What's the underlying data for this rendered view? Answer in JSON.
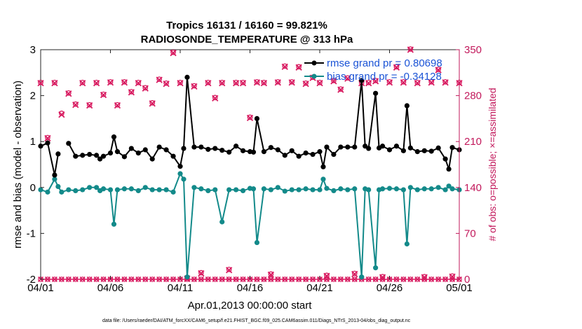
{
  "chart_data": {
    "type": "line",
    "title_line1": "Tropics 16131 / 16160 = 99.821%",
    "title_line2": "RADIOSONDE_TEMPERATURE @ 313 hPa",
    "xlabel": "Apr.01,2013 00:00:00 start",
    "ylabel_left": "rmse and bias (model - observation)",
    "ylabel_right": "# of obs: o=possible; ×=assimilated",
    "footnote": "data file: /Users/raeder/DAI/ATM_forcXX/CAM6_setup/f.e21.FHIST_BGC.f09_025.CAM6assim.011/Diags_NTrS_2013-04/obs_diag_output.nc",
    "xlim": [
      0,
      30
    ],
    "ylim_left": [
      -2,
      3
    ],
    "ylim_right": [
      0,
      350
    ],
    "x_ticks": [
      {
        "x": 0,
        "label": "04/01"
      },
      {
        "x": 5,
        "label": "04/06"
      },
      {
        "x": 10,
        "label": "04/11"
      },
      {
        "x": 15,
        "label": "04/16"
      },
      {
        "x": 20,
        "label": "04/21"
      },
      {
        "x": 25,
        "label": "04/26"
      },
      {
        "x": 30,
        "label": "05/01"
      }
    ],
    "y_ticks_left": [
      "-2",
      "-1",
      "0",
      "1",
      "2",
      "3"
    ],
    "y_ticks_right": [
      "0",
      "70",
      "140",
      "210",
      "280",
      "350"
    ],
    "legend": [
      {
        "name": "rmse grand pr = 0.80698",
        "color": "#000000"
      },
      {
        "name": "bias grand pr = -0.34128",
        "color": "#138a8a"
      }
    ],
    "colors": {
      "rmse": "#000000",
      "bias": "#138a8a",
      "obs": "#d81b60",
      "legend_text": "#1a53d6"
    },
    "x": [
      0.0,
      0.5,
      1.0,
      1.25,
      1.5,
      2.0,
      2.5,
      3.0,
      3.5,
      4.0,
      4.25,
      4.5,
      5.0,
      5.25,
      5.5,
      6.0,
      6.5,
      7.0,
      7.5,
      8.0,
      8.5,
      9.0,
      9.5,
      10.0,
      10.25,
      10.5,
      11.0,
      11.5,
      12.0,
      12.5,
      13.0,
      13.5,
      14.0,
      14.5,
      15.0,
      15.25,
      15.5,
      16.0,
      16.5,
      17.0,
      17.5,
      18.0,
      18.5,
      19.0,
      19.5,
      20.0,
      20.25,
      20.5,
      21.0,
      21.5,
      22.0,
      22.5,
      23.0,
      23.25,
      23.5,
      24.0,
      24.25,
      24.5,
      25.0,
      25.5,
      26.0,
      26.25,
      26.5,
      27.0,
      27.5,
      28.0,
      28.5,
      29.0,
      29.25,
      29.5,
      30.0
    ],
    "series": [
      {
        "name": "rmse",
        "values": [
          0.9,
          0.97,
          0.27,
          0.73,
          null,
          0.96,
          0.68,
          0.7,
          0.72,
          0.7,
          0.62,
          0.68,
          0.75,
          1.1,
          0.78,
          0.67,
          0.85,
          0.75,
          0.82,
          0.62,
          0.88,
          0.82,
          0.68,
          0.46,
          0.85,
          2.4,
          0.88,
          0.88,
          0.83,
          0.85,
          0.81,
          0.77,
          0.9,
          0.8,
          0.78,
          0.77,
          1.5,
          0.78,
          0.87,
          0.82,
          0.7,
          0.8,
          0.68,
          0.75,
          0.72,
          0.78,
          0.45,
          0.88,
          0.72,
          0.88,
          0.88,
          0.88,
          2.33,
          0.9,
          0.85,
          2.05,
          0.86,
          0.9,
          0.82,
          0.9,
          0.8,
          1.78,
          0.86,
          0.78,
          0.8,
          0.79,
          0.86,
          0.62,
          0.4,
          0.87,
          0.82
        ]
      },
      {
        "name": "bias",
        "values": [
          -0.05,
          -0.1,
          0.18,
          0.02,
          -0.1,
          -0.05,
          -0.07,
          -0.05,
          0.0,
          0.0,
          -0.07,
          -0.03,
          -0.05,
          -0.8,
          -0.05,
          -0.03,
          -0.03,
          -0.07,
          0.0,
          -0.05,
          -0.05,
          -0.05,
          -0.1,
          0.3,
          0.18,
          -1.95,
          0.0,
          -0.03,
          -0.07,
          -0.05,
          -0.75,
          -0.05,
          -0.05,
          -0.07,
          -0.02,
          -0.03,
          -1.2,
          -0.03,
          -0.05,
          0.0,
          -0.08,
          -0.05,
          -0.05,
          -0.03,
          -0.05,
          -0.05,
          0.18,
          -0.02,
          -0.07,
          -0.03,
          -0.05,
          -0.03,
          -1.95,
          -0.03,
          -0.05,
          -1.75,
          -0.05,
          -0.03,
          -0.02,
          -0.03,
          -0.05,
          -1.23,
          0.0,
          -0.05,
          -0.03,
          -0.03,
          0.0,
          -0.05,
          0.03,
          -0.03,
          -0.05
        ]
      }
    ],
    "obs_possible_x": [
      0.0,
      0.5,
      1.0,
      1.5,
      2.0,
      2.5,
      3.0,
      3.5,
      4.0,
      4.5,
      5.0,
      5.5,
      6.0,
      6.5,
      7.0,
      7.5,
      8.0,
      8.5,
      9.0,
      9.5,
      10.0,
      10.5,
      11.0,
      11.5,
      12.0,
      12.5,
      13.0,
      13.5,
      14.0,
      14.5,
      15.0,
      15.5,
      16.0,
      16.5,
      17.0,
      17.5,
      18.0,
      18.5,
      19.0,
      19.5,
      20.0,
      20.5,
      21.0,
      21.5,
      22.0,
      22.5,
      23.0,
      23.5,
      24.0,
      24.5,
      25.0,
      25.5,
      26.0,
      26.5,
      27.0,
      27.5,
      28.0,
      28.5,
      29.0,
      29.5,
      30.0
    ],
    "obs_possible_y": [
      300,
      216,
      300,
      253,
      284,
      267,
      300,
      266,
      300,
      282,
      301,
      266,
      301,
      286,
      300,
      292,
      269,
      305,
      299,
      346,
      300,
      2,
      295,
      10,
      300,
      277,
      300,
      15,
      300,
      300,
      247,
      301,
      300,
      8,
      301,
      325,
      301,
      324,
      299,
      308,
      300,
      6,
      303,
      290,
      307,
      9,
      300,
      300,
      303,
      4,
      301,
      324,
      301,
      351,
      300,
      4,
      301,
      320,
      301,
      5,
      300
    ],
    "obs_assim_x": [
      0.0,
      0.5,
      1.0,
      1.5,
      2.0,
      2.5,
      3.0,
      3.5,
      4.0,
      4.5,
      5.0,
      5.5,
      6.0,
      6.5,
      7.0,
      7.5,
      8.0,
      8.5,
      9.0,
      9.5,
      10.0,
      10.5,
      11.0,
      11.5,
      12.0,
      12.5,
      13.0,
      13.5,
      14.0,
      14.5,
      15.0,
      15.5,
      16.0,
      16.5,
      17.0,
      17.5,
      18.0,
      18.5,
      19.0,
      19.5,
      20.0,
      20.5,
      21.0,
      21.5,
      22.0,
      22.5,
      23.0,
      23.5,
      24.0,
      24.5,
      25.0,
      25.5,
      26.0,
      26.5,
      27.0,
      27.5,
      28.0,
      28.5,
      29.0,
      29.5,
      30.0
    ],
    "obs_assim_y": [
      299,
      215,
      299,
      251,
      283,
      266,
      299,
      265,
      299,
      281,
      300,
      265,
      300,
      285,
      299,
      291,
      268,
      304,
      298,
      345,
      299,
      1,
      294,
      9,
      299,
      276,
      299,
      14,
      299,
      299,
      246,
      300,
      299,
      7,
      300,
      324,
      300,
      323,
      298,
      307,
      299,
      5,
      302,
      289,
      306,
      8,
      299,
      299,
      302,
      3,
      300,
      323,
      300,
      350,
      299,
      3,
      300,
      319,
      300,
      4,
      299
    ],
    "obs_line_values": [
      0,
      0,
      0,
      0,
      0,
      0,
      0,
      0,
      0,
      0,
      0,
      0,
      0,
      0,
      0,
      0,
      0,
      0,
      0,
      0,
      0,
      0,
      0,
      0,
      0,
      0,
      0,
      0,
      0,
      0,
      0,
      0,
      0,
      0,
      0,
      0,
      0,
      0,
      0,
      0,
      0,
      0,
      0,
      0,
      0,
      0,
      0,
      0,
      0,
      0,
      0,
      0,
      0,
      0,
      0,
      0,
      0,
      0,
      0,
      0,
      0,
      0
    ]
  }
}
